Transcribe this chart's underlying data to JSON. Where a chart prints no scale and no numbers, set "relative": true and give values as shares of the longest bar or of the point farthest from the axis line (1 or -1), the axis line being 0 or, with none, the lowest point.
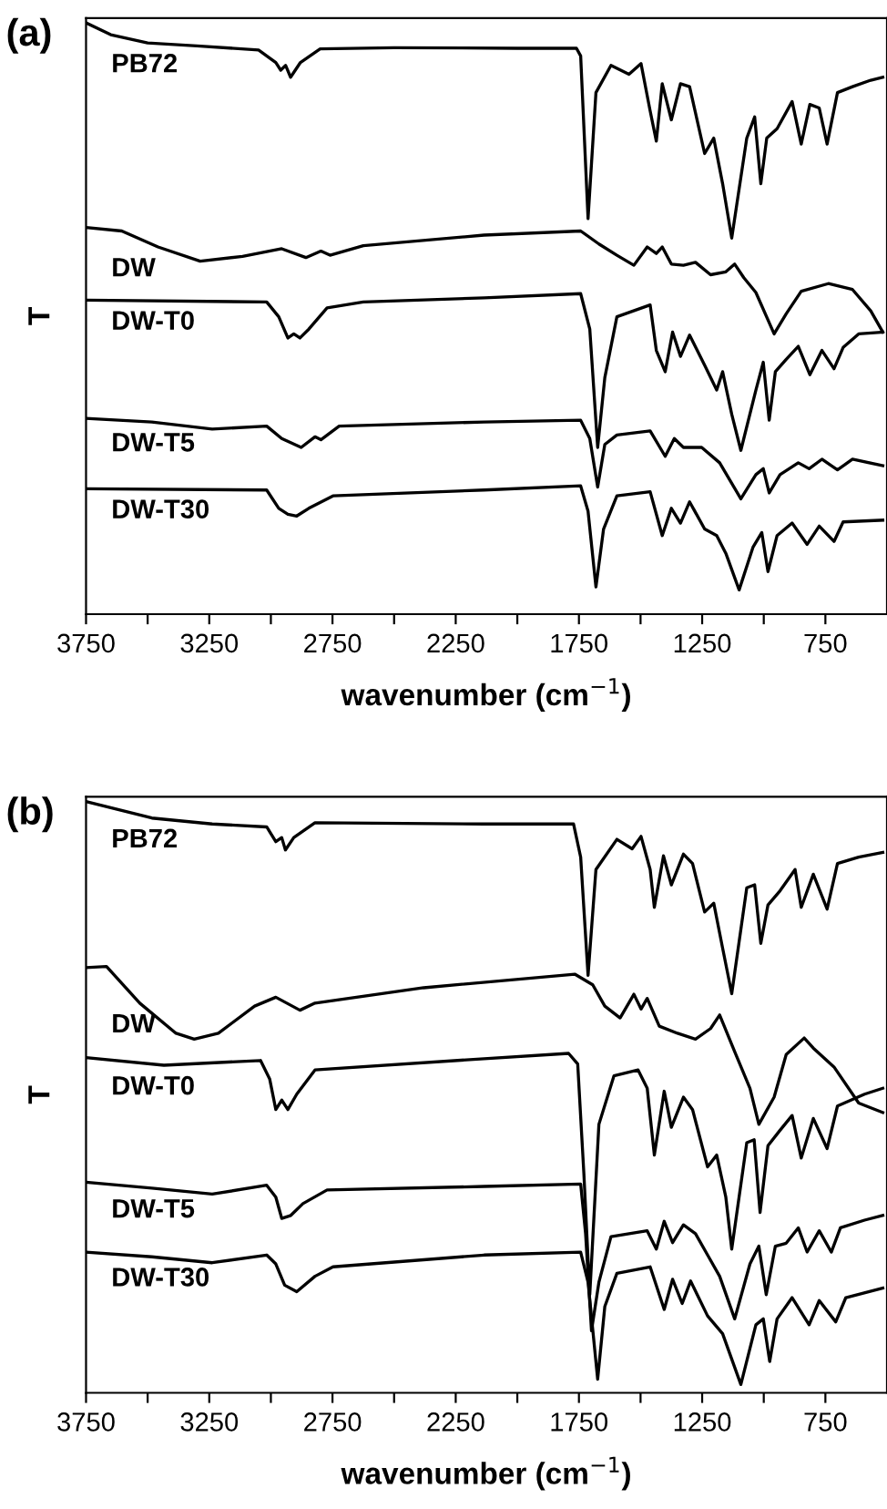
{
  "chart_data": [
    {
      "type": "line",
      "title": "(a)",
      "xlabel": "wavenumber (cm$^{−1}$)",
      "ylabel": "T",
      "relative": true,
      "tick_labels": "x",
      "grid": false,
      "legend": false,
      "marker": "none",
      "line_style": "solid",
      "xlim": [
        3750,
        500
      ],
      "xticks": [
        3750,
        {
          "value": 3500,
          "label": null
        },
        3250,
        {
          "value": 3000,
          "label": null
        },
        2750,
        {
          "value": 2500,
          "label": null
        },
        2250,
        {
          "value": 2000,
          "label": null
        },
        1750,
        {
          "value": 1500,
          "label": null
        },
        1250,
        {
          "value": 1000,
          "label": null
        },
        750
      ],
      "series": [
        {
          "name": "PB72",
          "color": "#000000",
          "x": [
            3750,
            3650,
            3500,
            3300,
            3050,
            2980,
            2960,
            2940,
            2920,
            2880,
            2800,
            2500,
            2000,
            1760,
            1743,
            1713,
            1681,
            1620,
            1547,
            1498,
            1461,
            1436,
            1412,
            1375,
            1338,
            1301,
            1240,
            1203,
            1167,
            1130,
            1069,
            1037,
            1012,
            988,
            946,
            885,
            848,
            813,
            775,
            743,
            701,
            640,
            566,
            517
          ],
          "values": [
            1.0,
            0.98,
            0.966,
            0.961,
            0.954,
            0.933,
            0.92,
            0.928,
            0.908,
            0.933,
            0.956,
            0.958,
            0.957,
            0.957,
            0.944,
            0.669,
            0.882,
            0.928,
            0.913,
            0.931,
            0.851,
            0.8,
            0.897,
            0.836,
            0.897,
            0.892,
            0.779,
            0.805,
            0.728,
            0.636,
            0.805,
            0.841,
            0.728,
            0.805,
            0.821,
            0.867,
            0.795,
            0.862,
            0.856,
            0.795,
            0.882,
            0.892,
            0.903,
            0.908
          ]
        },
        {
          "name": "DW",
          "color": "#000000",
          "x": [
            3750,
            3605,
            3458,
            3287,
            3115,
            2956,
            2858,
            2797,
            2760,
            2625,
            2135,
            1743,
            1669,
            1596,
            1527,
            1473,
            1436,
            1412,
            1375,
            1326,
            1277,
            1216,
            1154,
            1118,
            1081,
            1032,
            958,
            909,
            848,
            738,
            640,
            566,
            517
          ],
          "values": [
            0.654,
            0.648,
            0.621,
            0.597,
            0.605,
            0.618,
            0.603,
            0.614,
            0.607,
            0.623,
            0.641,
            0.648,
            0.626,
            0.607,
            0.59,
            0.621,
            0.61,
            0.621,
            0.592,
            0.59,
            0.595,
            0.574,
            0.579,
            0.592,
            0.569,
            0.544,
            0.474,
            0.508,
            0.546,
            0.559,
            0.549,
            0.513,
            0.477
          ]
        },
        {
          "name": "DW-T0",
          "color": "#000000",
          "x": [
            3750,
            3017,
            2968,
            2931,
            2907,
            2882,
            2846,
            2772,
            2625,
            2135,
            1743,
            1706,
            1674,
            1645,
            1596,
            1461,
            1436,
            1400,
            1370,
            1338,
            1301,
            1240,
            1191,
            1167,
            1130,
            1093,
            1032,
            1002,
            978,
            953,
            909,
            860,
            813,
            764,
            715,
            678,
            615,
            517
          ],
          "values": [
            0.531,
            0.528,
            0.503,
            0.467,
            0.474,
            0.467,
            0.482,
            0.518,
            0.528,
            0.535,
            0.542,
            0.482,
            0.282,
            0.4,
            0.503,
            0.523,
            0.446,
            0.41,
            0.477,
            0.436,
            0.472,
            0.421,
            0.379,
            0.41,
            0.338,
            0.277,
            0.379,
            0.426,
            0.328,
            0.41,
            0.431,
            0.453,
            0.405,
            0.446,
            0.415,
            0.451,
            0.474,
            0.477
          ]
        },
        {
          "name": "DW-T5",
          "color": "#000000",
          "x": [
            3750,
            3483,
            3238,
            3017,
            2956,
            2877,
            2821,
            2797,
            2723,
            2135,
            1743,
            1706,
            1674,
            1645,
            1596,
            1461,
            1400,
            1363,
            1326,
            1252,
            1179,
            1093,
            1032,
            1002,
            978,
            934,
            860,
            816,
            764,
            701,
            640,
            517
          ],
          "values": [
            0.331,
            0.325,
            0.313,
            0.318,
            0.297,
            0.282,
            0.3,
            0.295,
            0.318,
            0.325,
            0.328,
            0.297,
            0.215,
            0.287,
            0.303,
            0.31,
            0.267,
            0.297,
            0.282,
            0.282,
            0.256,
            0.195,
            0.236,
            0.246,
            0.205,
            0.236,
            0.256,
            0.246,
            0.262,
            0.244,
            0.262,
            0.251
          ]
        },
        {
          "name": "DW-T30",
          "color": "#000000",
          "x": [
            3750,
            3017,
            2968,
            2931,
            2895,
            2846,
            2748,
            2135,
            1743,
            1713,
            1681,
            1650,
            1596,
            1461,
            1412,
            1375,
            1338,
            1301,
            1240,
            1191,
            1154,
            1100,
            1044,
            1008,
            983,
            946,
            885,
            824,
            775,
            715,
            678,
            517
          ],
          "values": [
            0.212,
            0.21,
            0.179,
            0.169,
            0.166,
            0.179,
            0.2,
            0.21,
            0.217,
            0.174,
            0.046,
            0.144,
            0.2,
            0.207,
            0.133,
            0.179,
            0.154,
            0.19,
            0.144,
            0.133,
            0.103,
            0.041,
            0.113,
            0.138,
            0.072,
            0.133,
            0.154,
            0.118,
            0.149,
            0.123,
            0.156,
            0.159
          ]
        }
      ]
    },
    {
      "type": "line",
      "title": "(b)",
      "xlabel": "wavenumber (cm$^{−1}$)",
      "ylabel": "T",
      "relative": true,
      "tick_labels": "x",
      "grid": false,
      "legend": false,
      "marker": "none",
      "line_style": "solid",
      "xlim": [
        3750,
        500
      ],
      "xticks": [
        3750,
        {
          "value": 3500,
          "label": null
        },
        3250,
        {
          "value": 3000,
          "label": null
        },
        2750,
        {
          "value": 2500,
          "label": null
        },
        2250,
        {
          "value": 2000,
          "label": null
        },
        1750,
        {
          "value": 1500,
          "label": null
        },
        1250,
        {
          "value": 1000,
          "label": null
        },
        750
      ],
      "series": [
        {
          "name": "PB72",
          "color": "#000000",
          "x": [
            3750,
            3483,
            3238,
            3017,
            2980,
            2956,
            2941,
            2907,
            2821,
            2135,
            1772,
            1743,
            1713,
            1681,
            1596,
            1534,
            1498,
            1461,
            1444,
            1407,
            1375,
            1326,
            1289,
            1240,
            1203,
            1167,
            1130,
            1069,
            1037,
            1012,
            983,
            934,
            873,
            848,
            799,
            743,
            701,
            615,
            517
          ],
          "values": [
            1.0,
            0.972,
            0.962,
            0.957,
            0.932,
            0.939,
            0.918,
            0.939,
            0.964,
            0.962,
            0.962,
            0.906,
            0.706,
            0.885,
            0.936,
            0.92,
            0.941,
            0.885,
            0.821,
            0.908,
            0.859,
            0.911,
            0.895,
            0.813,
            0.828,
            0.752,
            0.675,
            0.854,
            0.859,
            0.76,
            0.825,
            0.849,
            0.885,
            0.821,
            0.877,
            0.818,
            0.895,
            0.906,
            0.914
          ]
        },
        {
          "name": "DW",
          "color": "#000000",
          "x": [
            3750,
            3667,
            3532,
            3385,
            3311,
            3213,
            3066,
            2980,
            2882,
            2821,
            2380,
            1767,
            1694,
            1645,
            1583,
            1527,
            1498,
            1473,
            1424,
            1350,
            1277,
            1216,
            1179,
            1118,
            1056,
            1020,
            958,
            909,
            836,
            799,
            715,
            615,
            517
          ],
          "values": [
            0.719,
            0.721,
            0.659,
            0.608,
            0.598,
            0.608,
            0.654,
            0.669,
            0.647,
            0.659,
            0.685,
            0.708,
            0.69,
            0.654,
            0.634,
            0.674,
            0.649,
            0.667,
            0.62,
            0.608,
            0.598,
            0.616,
            0.639,
            0.577,
            0.515,
            0.454,
            0.5,
            0.572,
            0.6,
            0.583,
            0.551,
            0.49,
            0.474
          ]
        },
        {
          "name": "DW-T0",
          "color": "#000000",
          "x": [
            3750,
            3434,
            3042,
            3005,
            2980,
            2956,
            2931,
            2895,
            2821,
            2135,
            1792,
            1755,
            1730,
            1706,
            1669,
            1608,
            1510,
            1473,
            1444,
            1404,
            1375,
            1326,
            1289,
            1228,
            1191,
            1154,
            1130,
            1069,
            1039,
            1015,
            983,
            934,
            885,
            848,
            799,
            743,
            701,
            591,
            517
          ],
          "values": [
            0.567,
            0.554,
            0.562,
            0.531,
            0.479,
            0.495,
            0.479,
            0.505,
            0.546,
            0.565,
            0.574,
            0.556,
            0.371,
            0.166,
            0.454,
            0.536,
            0.546,
            0.515,
            0.402,
            0.51,
            0.449,
            0.5,
            0.479,
            0.382,
            0.402,
            0.331,
            0.243,
            0.423,
            0.428,
            0.305,
            0.418,
            0.444,
            0.469,
            0.397,
            0.464,
            0.413,
            0.485,
            0.505,
            0.515
          ]
        },
        {
          "name": "DW-T5",
          "color": "#000000",
          "x": [
            3750,
            3483,
            3238,
            3017,
            2980,
            2956,
            2919,
            2870,
            2772,
            2135,
            1743,
            1723,
            1699,
            1669,
            1620,
            1473,
            1436,
            1404,
            1370,
            1326,
            1277,
            1228,
            1179,
            1118,
            1056,
            1020,
            990,
            953,
            909,
            860,
            824,
            775,
            726,
            689,
            591,
            517
          ],
          "values": [
            0.356,
            0.346,
            0.336,
            0.351,
            0.331,
            0.295,
            0.3,
            0.32,
            0.343,
            0.349,
            0.353,
            0.269,
            0.105,
            0.187,
            0.264,
            0.274,
            0.243,
            0.29,
            0.254,
            0.284,
            0.269,
            0.233,
            0.197,
            0.125,
            0.218,
            0.248,
            0.166,
            0.248,
            0.253,
            0.279,
            0.238,
            0.274,
            0.238,
            0.279,
            0.292,
            0.3
          ]
        },
        {
          "name": "DW-T30",
          "color": "#000000",
          "x": [
            3750,
            3483,
            3238,
            3017,
            2980,
            2944,
            2895,
            2821,
            2748,
            2135,
            1743,
            1713,
            1674,
            1645,
            1596,
            1461,
            1404,
            1370,
            1331,
            1297,
            1228,
            1167,
            1093,
            1032,
            1002,
            976,
            946,
            885,
            816,
            775,
            708,
            667,
            517
          ],
          "values": [
            0.238,
            0.23,
            0.22,
            0.233,
            0.218,
            0.182,
            0.171,
            0.197,
            0.213,
            0.233,
            0.238,
            0.187,
            0.023,
            0.146,
            0.202,
            0.213,
            0.141,
            0.192,
            0.151,
            0.189,
            0.13,
            0.1,
            0.014,
            0.115,
            0.125,
            0.053,
            0.125,
            0.161,
            0.115,
            0.156,
            0.12,
            0.161,
            0.177
          ]
        }
      ]
    }
  ]
}
